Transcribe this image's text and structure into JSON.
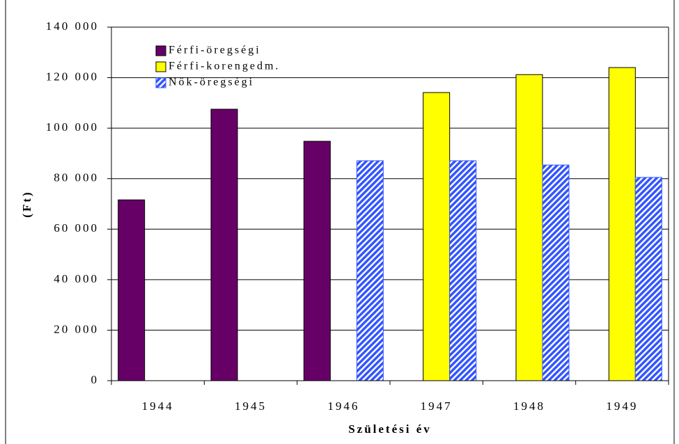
{
  "chart_data": {
    "type": "bar",
    "categories": [
      "1944",
      "1945",
      "1946",
      "1947",
      "1948",
      "1949"
    ],
    "series": [
      {
        "name": "Férfi-öregségi",
        "color": "#660066",
        "values": [
          71600,
          107500,
          94800,
          null,
          null,
          null
        ]
      },
      {
        "name": "Férfi-korengedm.",
        "color": "#ffff00",
        "values": [
          null,
          null,
          null,
          114100,
          121200,
          124000
        ]
      },
      {
        "name": "Nők-öregségi",
        "color": "#3355ff",
        "values": [
          null,
          null,
          87100,
          87100,
          85400,
          80500
        ]
      }
    ],
    "ylim": [
      0,
      140000
    ],
    "yticks": [
      0,
      {
        "value": 20000,
        "label": "20 000"
      },
      {
        "value": 40000,
        "label": "40 000"
      },
      {
        "value": 60000,
        "label": "60 000"
      },
      {
        "value": 80000,
        "label": "80 000"
      },
      {
        "value": 100000,
        "label": "100 000"
      },
      {
        "value": 120000,
        "label": "120 000"
      },
      {
        "value": 140000,
        "label": "140 000"
      }
    ],
    "y_label": "(Ft)",
    "x_label": "Születési év",
    "grid": true,
    "legend": "top-left"
  }
}
